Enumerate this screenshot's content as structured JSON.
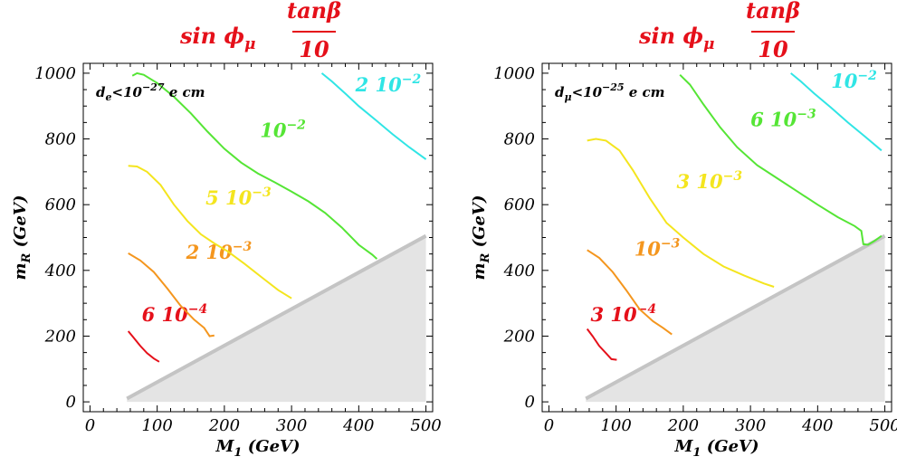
{
  "chart_data": [
    {
      "type": "line",
      "title": "sin ϕμ tanβ/10",
      "title_parts": {
        "prefix": "sin ϕ",
        "sub": "μ",
        "numerator": "tanβ",
        "denominator": "10"
      },
      "bound": {
        "base": "d",
        "sub": "e",
        "text": "<10",
        "sup": "−27",
        "unit": " e cm"
      },
      "xlabel": {
        "base": "M",
        "sub": "1",
        "unit": " (GeV)"
      },
      "ylabel": {
        "base": "m",
        "sub": "R",
        "unit": " (GeV)"
      },
      "xlim": [
        -10,
        510
      ],
      "ylim": [
        -30,
        1030
      ],
      "xticks": [
        "0",
        "100",
        "200",
        "300",
        "400",
        "500"
      ],
      "yticks": [
        "0",
        "200",
        "400",
        "600",
        "800",
        "1000"
      ],
      "excluded_region": {
        "x": [
          55,
          500,
          500,
          55
        ],
        "y": [
          10,
          505,
          0,
          0
        ],
        "color": "#e4e4e4",
        "edge_color": "#c4c4c4"
      },
      "series": [
        {
          "name": "6 10⁻⁴",
          "mant": "6 10",
          "exp": "−4",
          "color": "#e5101a",
          "label_at": [
            77,
            245
          ],
          "x": [
            57,
            65,
            75,
            85,
            95,
            103
          ],
          "y": [
            215,
            195,
            170,
            148,
            132,
            122
          ]
        },
        {
          "name": "2 10⁻³",
          "mant": "2 10",
          "exp": "−3",
          "color": "#f4961e",
          "label_at": [
            143,
            435
          ],
          "x": [
            57,
            75,
            95,
            115,
            135,
            155,
            170,
            178,
            185
          ],
          "y": [
            452,
            430,
            395,
            345,
            292,
            250,
            225,
            200,
            202
          ]
        },
        {
          "name": "5 10⁻³",
          "mant": "5 10",
          "exp": "−3",
          "color": "#f4e51e",
          "label_at": [
            172,
            600
          ],
          "x": [
            57,
            70,
            85,
            105,
            125,
            145,
            165,
            185,
            205,
            230,
            255,
            280,
            300
          ],
          "y": [
            718,
            716,
            700,
            660,
            600,
            550,
            510,
            482,
            458,
            420,
            380,
            340,
            315
          ]
        },
        {
          "name": "10⁻²",
          "mant": "10",
          "exp": "−2",
          "color": "#55e535",
          "label_at": [
            253,
            805
          ],
          "x": [
            63,
            70,
            80,
            100,
            125,
            150,
            175,
            200,
            225,
            250,
            275,
            300,
            325,
            350,
            375,
            400,
            420,
            427
          ],
          "y": [
            992,
            1000,
            995,
            970,
            928,
            878,
            822,
            770,
            728,
            695,
            668,
            640,
            610,
            575,
            530,
            478,
            448,
            435
          ]
        },
        {
          "name": "2 10⁻²",
          "mant": "2 10",
          "exp": "−2",
          "color": "#30e5e5",
          "label_at": [
            395,
            945
          ],
          "x": [
            345,
            360,
            380,
            400,
            425,
            450,
            475,
            500
          ],
          "y": [
            1000,
            975,
            938,
            900,
            858,
            815,
            775,
            738
          ]
        }
      ]
    },
    {
      "type": "line",
      "title": "sin ϕμ tanβ/10",
      "title_parts": {
        "prefix": "sin ϕ",
        "sub": "μ",
        "numerator": "tanβ",
        "denominator": "10"
      },
      "bound": {
        "base": "d",
        "sub": "μ",
        "text": "<10",
        "sup": "−25",
        "unit": " e cm"
      },
      "xlabel": {
        "base": "M",
        "sub": "1",
        "unit": " (GeV)"
      },
      "ylabel": {
        "base": "m",
        "sub": "R",
        "unit": " (GeV)"
      },
      "xlim": [
        -10,
        510
      ],
      "ylim": [
        -30,
        1030
      ],
      "xticks": [
        "0",
        "100",
        "200",
        "300",
        "400",
        "500"
      ],
      "yticks": [
        "0",
        "200",
        "400",
        "600",
        "800",
        "1000"
      ],
      "excluded_region": {
        "x": [
          55,
          500,
          500,
          55
        ],
        "y": [
          10,
          505,
          0,
          0
        ],
        "color": "#e4e4e4",
        "edge_color": "#c4c4c4"
      },
      "series": [
        {
          "name": "3 10⁻⁴",
          "mant": "3 10",
          "exp": "−4",
          "color": "#e5101a",
          "label_at": [
            62,
            245
          ],
          "x": [
            57,
            65,
            75,
            85,
            93,
            101
          ],
          "y": [
            222,
            200,
            170,
            148,
            130,
            128
          ]
        },
        {
          "name": "10⁻³",
          "mant": "10",
          "exp": "−3",
          "color": "#f4961e",
          "label_at": [
            127,
            445
          ],
          "x": [
            57,
            75,
            95,
            115,
            135,
            155,
            170,
            183
          ],
          "y": [
            462,
            438,
            395,
            340,
            282,
            245,
            225,
            205
          ]
        },
        {
          "name": "3 10⁻³",
          "mant": "3 10",
          "exp": "−3",
          "color": "#f4e51e",
          "label_at": [
            190,
            650
          ],
          "x": [
            57,
            70,
            85,
            105,
            125,
            150,
            175,
            200,
            230,
            260,
            290,
            320,
            335
          ],
          "y": [
            795,
            800,
            795,
            765,
            705,
            620,
            545,
            500,
            450,
            412,
            385,
            360,
            350
          ]
        },
        {
          "name": "6 10⁻³",
          "mant": "6 10",
          "exp": "−3",
          "color": "#55e535",
          "label_at": [
            300,
            838
          ],
          "x": [
            195,
            210,
            230,
            255,
            280,
            310,
            340,
            370,
            400,
            430,
            455,
            465,
            468,
            475,
            485,
            495
          ],
          "y": [
            995,
            965,
            905,
            835,
            775,
            720,
            680,
            640,
            600,
            562,
            535,
            520,
            480,
            478,
            490,
            505
          ]
        },
        {
          "name": "10⁻²",
          "mant": "10",
          "exp": "−2",
          "color": "#30e5e5",
          "label_at": [
            420,
            955
          ],
          "x": [
            360,
            375,
            395,
            420,
            445,
            470,
            495
          ],
          "y": [
            1000,
            975,
            938,
            895,
            850,
            808,
            765
          ]
        }
      ]
    }
  ]
}
